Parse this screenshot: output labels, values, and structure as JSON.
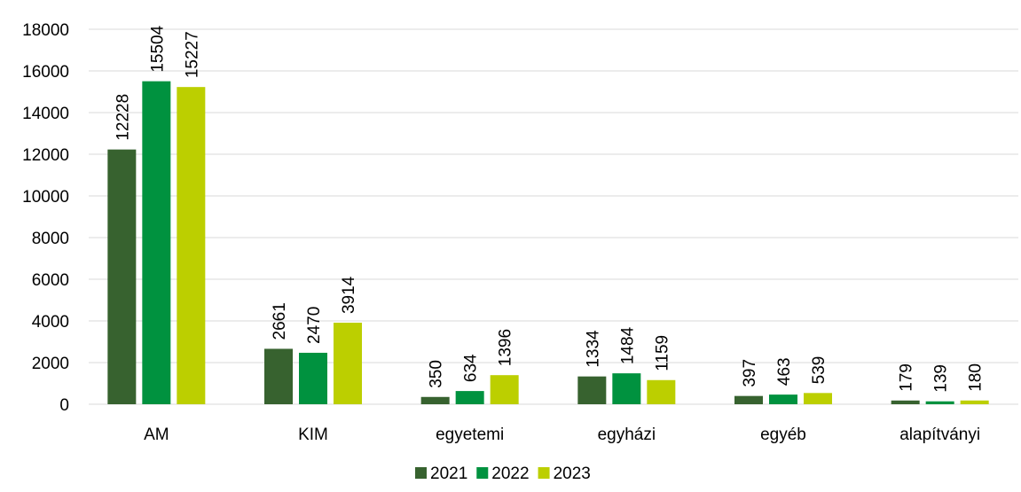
{
  "chart_data": {
    "type": "bar",
    "categories": [
      "AM",
      "KIM",
      "egyetemi",
      "egyházi",
      "egyéb",
      "alapítványi"
    ],
    "series": [
      {
        "name": "2021",
        "color": "#37622f",
        "values": [
          12228,
          2661,
          350,
          1334,
          397,
          179
        ]
      },
      {
        "name": "2022",
        "color": "#00923f",
        "values": [
          15504,
          2470,
          634,
          1484,
          463,
          139
        ]
      },
      {
        "name": "2023",
        "color": "#bccf00",
        "values": [
          15227,
          3914,
          1396,
          1159,
          539,
          180
        ]
      }
    ],
    "ylim": [
      0,
      18000
    ],
    "yticks": [
      0,
      2000,
      4000,
      6000,
      8000,
      10000,
      12000,
      14000,
      16000,
      18000
    ],
    "grid": true,
    "legend": "bottom"
  }
}
